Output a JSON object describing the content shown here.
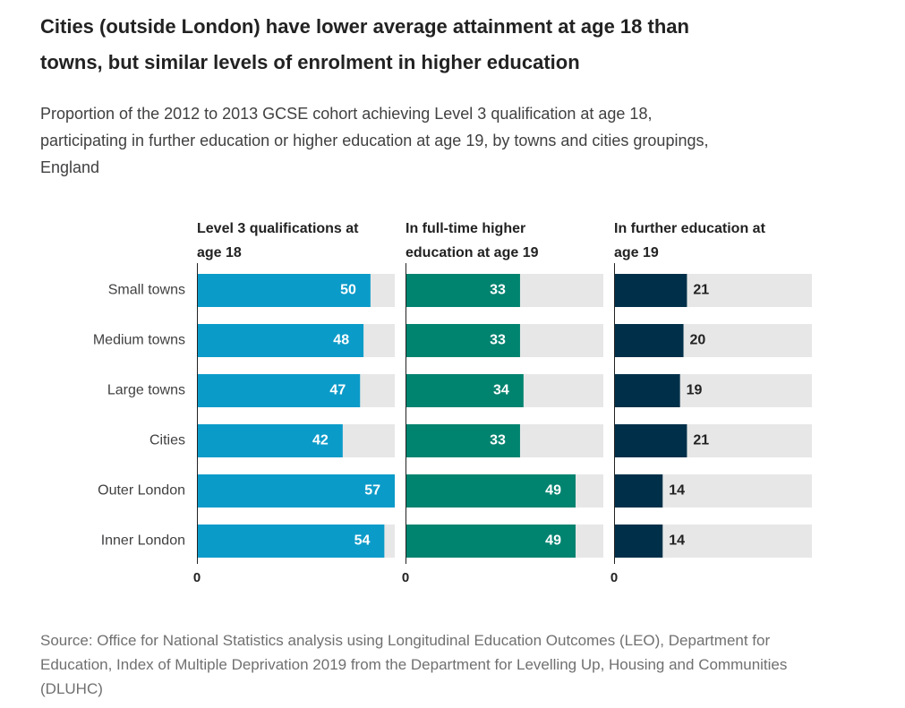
{
  "title": "Cities (outside London) have lower average attainment at age 18 than towns, but similar levels of enrolment in higher education",
  "subtitle": "Proportion of the 2012 to 2013 GCSE cohort achieving Level 3 qualification at age 18, participating in further education or higher education at age 19, by towns and cities groupings, England",
  "source": "Source: Office for National Statistics analysis using Longitudinal Education Outcomes (LEO), Department for Education, Index of Multiple Deprivation 2019 from the Department for Levelling Up, Housing and Communities (DLUHC)",
  "chart_data": {
    "type": "bar",
    "orientation": "horizontal",
    "categories": [
      "Small towns",
      "Medium towns",
      "Large towns",
      "Cities",
      "Outer London",
      "Inner London"
    ],
    "xlim": [
      0,
      57
    ],
    "x_tick_labels": [
      "0"
    ],
    "grid": false,
    "series": [
      {
        "name": "Level 3 qualifications at age 18",
        "values": [
          50,
          48,
          47,
          42,
          57,
          54
        ],
        "color": "#0b9bc9",
        "label_position": "inside",
        "label_color": "#ffffff"
      },
      {
        "name": "In full-time higher education at age 19",
        "values": [
          33,
          33,
          34,
          33,
          49,
          49
        ],
        "color": "#00836f",
        "label_position": "inside",
        "label_color": "#ffffff"
      },
      {
        "name": "In further education at age 19",
        "values": [
          21,
          20,
          19,
          21,
          14,
          14
        ],
        "color": "#003049",
        "label_position": "outside",
        "label_color": "#222222"
      }
    ],
    "track_color": "#e7e7e7"
  }
}
